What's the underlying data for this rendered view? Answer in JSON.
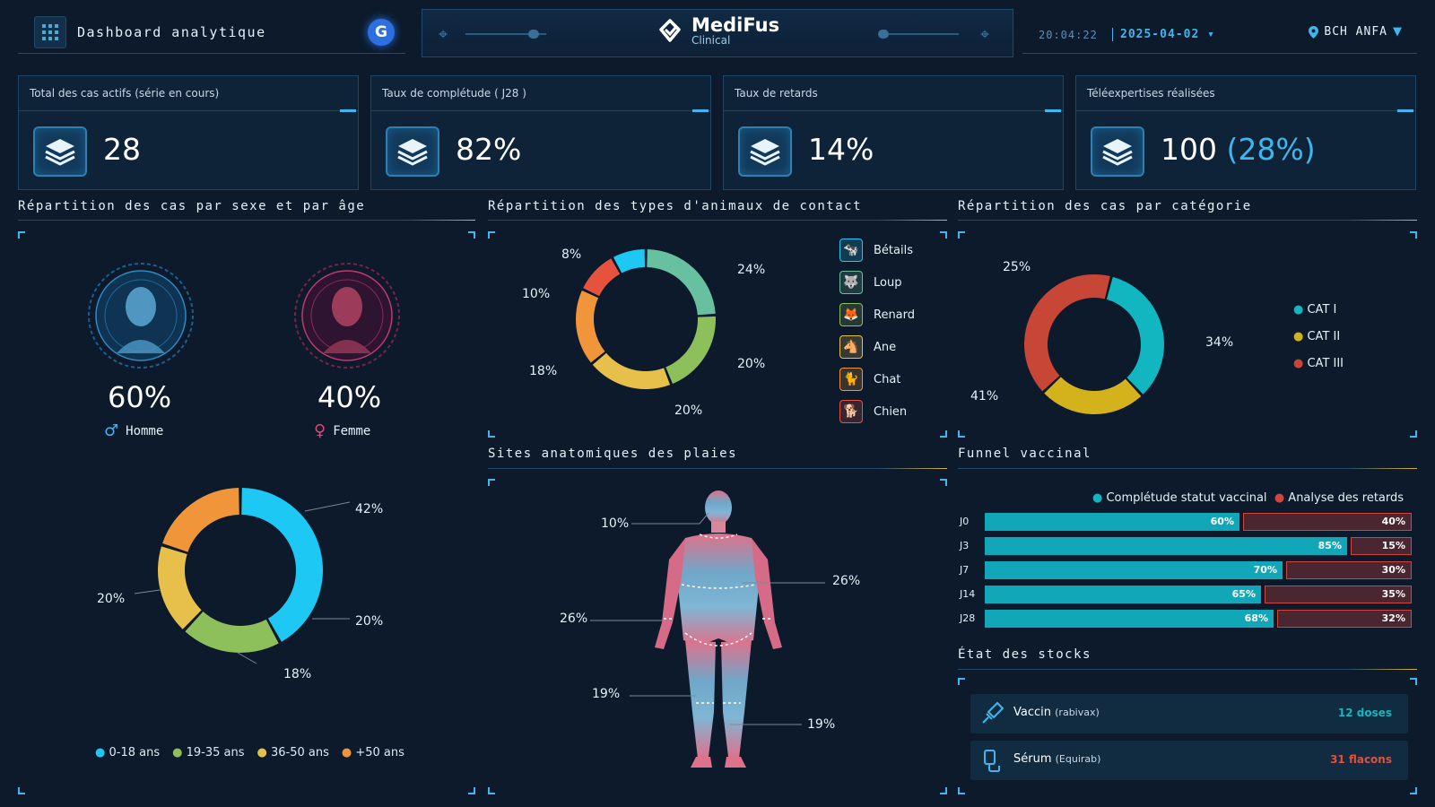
{
  "header": {
    "title": "Dashboard analytique",
    "g_badge": "G",
    "brand_name": "MediFus",
    "brand_sub": "Clinical",
    "time": "20:04:22",
    "date": "2025-04-02",
    "location": "BCH ANFA"
  },
  "kpis": [
    {
      "title": "Total des cas actifs (série en cours)",
      "value": "28",
      "extra": ""
    },
    {
      "title": "Taux de complétude ( J28 )",
      "value": "82%",
      "extra": ""
    },
    {
      "title": "Taux de retards",
      "value": "14%",
      "extra": ""
    },
    {
      "title": "Téléexpertises réalisées",
      "value": "100",
      "extra": "(28%)"
    }
  ],
  "sex_age": {
    "title": "Répartition des cas par sexe et par âge",
    "male_pct": "60%",
    "male_label": "Homme",
    "female_pct": "40%",
    "female_label": "Femme",
    "age_labels": [
      "42%",
      "20%",
      "18%",
      "20%"
    ],
    "legend": [
      "0-18 ans",
      "19-35 ans",
      "36-50 ans",
      "+50 ans"
    ]
  },
  "animals": {
    "title": "Répartition des types d'animaux de contact",
    "labels": [
      "8%",
      "24%",
      "10%",
      "18%",
      "20%",
      "20%"
    ],
    "legend": [
      "Bétails",
      "Loup",
      "Renard",
      "Ane",
      "Chat",
      "Chien"
    ]
  },
  "categories": {
    "title": "Répartition des cas par catégorie",
    "labels": [
      "25%",
      "34%",
      "41%"
    ],
    "legend": [
      "CAT I",
      "CAT II",
      "CAT III"
    ]
  },
  "anatomy": {
    "title": "Sites anatomiques des plaies",
    "labels": [
      "10%",
      "26%",
      "26%",
      "19%",
      "19%"
    ]
  },
  "funnel": {
    "title": "Funnel vaccinal",
    "legend_a": "Complétude statut vaccinal",
    "legend_b": "Analyse des retards",
    "rows": [
      {
        "label": "J0",
        "a": "60%",
        "b": "40%"
      },
      {
        "label": "J3",
        "a": "85%",
        "b": "15%"
      },
      {
        "label": "J7",
        "a": "70%",
        "b": "30%"
      },
      {
        "label": "J14",
        "a": "65%",
        "b": "35%"
      },
      {
        "label": "J28",
        "a": "68%",
        "b": "32%"
      }
    ]
  },
  "stocks": {
    "title": "État des stocks",
    "items": [
      {
        "name": "Vaccin",
        "sub": "(rabivax)",
        "value": "12 doses"
      },
      {
        "name": "Sérum",
        "sub": "(Equirab)",
        "value": "31 flacons"
      }
    ]
  },
  "chart_data": [
    {
      "type": "pie",
      "title": "Répartition des cas par sexe",
      "categories": [
        "Homme",
        "Femme"
      ],
      "values": [
        60,
        40
      ]
    },
    {
      "type": "pie",
      "title": "Répartition des cas par âge",
      "categories": [
        "0-18 ans",
        "19-35 ans",
        "36-50 ans",
        "+50 ans"
      ],
      "values": [
        42,
        20,
        18,
        20
      ]
    },
    {
      "type": "pie",
      "title": "Répartition des types d'animaux de contact",
      "categories": [
        "Bétails",
        "Loup",
        "Renard",
        "Ane",
        "Chat",
        "Chien"
      ],
      "values": [
        8,
        24,
        20,
        20,
        18,
        10
      ]
    },
    {
      "type": "pie",
      "title": "Répartition des cas par catégorie",
      "categories": [
        "CAT I",
        "CAT II",
        "CAT III"
      ],
      "values": [
        34,
        25,
        41
      ]
    },
    {
      "type": "bar",
      "title": "Funnel vaccinal",
      "categories": [
        "J0",
        "J3",
        "J7",
        "J14",
        "J28"
      ],
      "series": [
        {
          "name": "Complétude statut vaccinal",
          "values": [
            60,
            85,
            70,
            65,
            68
          ]
        },
        {
          "name": "Analyse des retards",
          "values": [
            40,
            15,
            30,
            35,
            32
          ]
        }
      ]
    }
  ],
  "colors": {
    "accent": "#3fb7ee",
    "age": [
      "#1ec8f5",
      "#8dbf5a",
      "#e6c04a",
      "#f0953a"
    ],
    "animals": [
      "#1ec8f5",
      "#67c1a0",
      "#8dbf5a",
      "#e6c04a",
      "#f0953a",
      "#e5533f"
    ],
    "categories": [
      "#12b6c0",
      "#d4b21c",
      "#c84635"
    ]
  }
}
